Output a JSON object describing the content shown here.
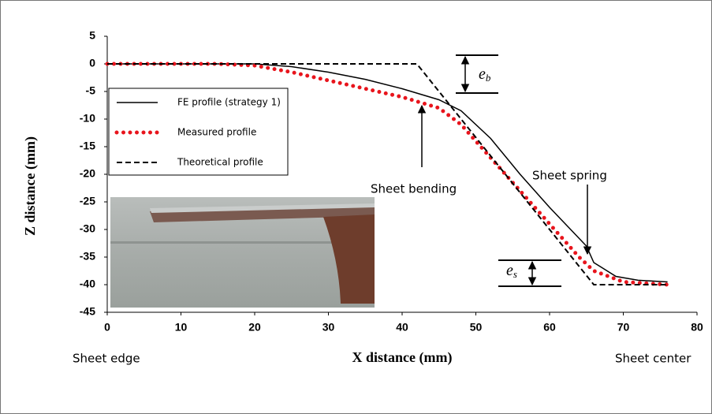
{
  "chart_data": {
    "type": "line",
    "x_label": "X distance (mm)",
    "y_label": "Z distance (mm)",
    "xlim": [
      0,
      80
    ],
    "xticks": [
      0,
      10,
      20,
      30,
      40,
      50,
      60,
      70,
      80
    ],
    "ylim": [
      -45,
      5
    ],
    "yticks": [
      5,
      0,
      -5,
      -10,
      -15,
      -20,
      -25,
      -30,
      -35,
      -40,
      -45
    ],
    "grid": false,
    "legend": "upper left",
    "series": [
      {
        "name": "FE profile (strategy 1)",
        "color": "#000000",
        "style": "solid",
        "x": [
          0,
          20,
          25,
          30,
          35,
          40,
          45,
          48,
          52,
          56,
          60,
          65,
          66,
          69,
          72,
          76
        ],
        "values": [
          0,
          0,
          -0.5,
          -1.5,
          -2.8,
          -4.5,
          -6.5,
          -8.5,
          -13.5,
          -20,
          -26,
          -33,
          -36,
          -38.5,
          -39.2,
          -39.5
        ]
      },
      {
        "name": "Measured profile",
        "color": "#e8141c",
        "style": "dotted",
        "x": [
          0,
          15,
          20,
          25,
          30,
          35,
          40,
          45,
          48,
          52,
          56,
          60,
          64,
          66,
          70,
          76
        ],
        "values": [
          0,
          0,
          -0.3,
          -1.5,
          -3,
          -4.5,
          -6,
          -8,
          -11,
          -17,
          -23,
          -29,
          -35,
          -37.5,
          -39.5,
          -40
        ]
      },
      {
        "name": "Theoretical profile",
        "color": "#000000",
        "style": "dashed",
        "x": [
          0,
          42,
          66,
          76
        ],
        "values": [
          0,
          0,
          -40,
          -40
        ]
      }
    ],
    "annotations": {
      "sheet_bending": "Sheet bending",
      "sheet_spring": "Sheet spring",
      "sheet_edge": "Sheet edge",
      "sheet_center": "Sheet center",
      "e_b": {
        "base": "e",
        "sub": "b"
      },
      "e_s": {
        "base": "e",
        "sub": "s"
      }
    }
  }
}
